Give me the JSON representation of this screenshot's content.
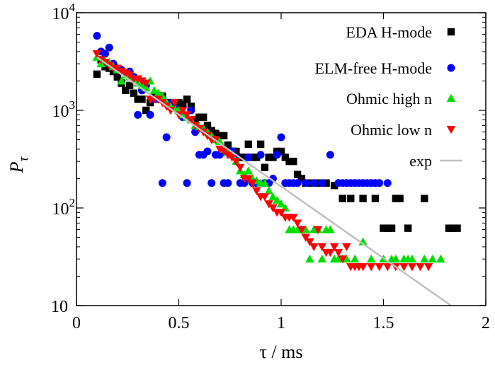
{
  "chart_data": {
    "type": "scatter",
    "xlabel": "τ / ms",
    "ylabel": "P",
    "ylabel_subscript": "τ",
    "xlim": [
      0,
      2
    ],
    "ylim": [
      10,
      10000
    ],
    "y_scale": "log",
    "grid": false,
    "legend_position": "top-right",
    "x_ticks": [
      {
        "value": 0,
        "label": "0"
      },
      {
        "value": 0.5,
        "label": "0.5"
      },
      {
        "value": 1,
        "label": "1"
      },
      {
        "value": 1.5,
        "label": "1.5"
      },
      {
        "value": 2,
        "label": "2"
      }
    ],
    "y_ticks": [
      {
        "value": 10,
        "label": "10",
        "exp": ""
      },
      {
        "value": 100,
        "label": "10",
        "exp": "2"
      },
      {
        "value": 1000,
        "label": "10",
        "exp": "3"
      },
      {
        "value": 10000,
        "label": "10",
        "exp": "4"
      }
    ],
    "series": [
      {
        "name": "EDA H-mode",
        "marker": "square",
        "color": "#000000",
        "points": [
          [
            0.1,
            2350
          ],
          [
            0.12,
            3300
          ],
          [
            0.14,
            2800
          ],
          [
            0.16,
            2700
          ],
          [
            0.18,
            2500
          ],
          [
            0.2,
            2200
          ],
          [
            0.22,
            1900
          ],
          [
            0.24,
            1600
          ],
          [
            0.26,
            1800
          ],
          [
            0.28,
            1500
          ],
          [
            0.3,
            1300
          ],
          [
            0.32,
            1300
          ],
          [
            0.34,
            1000
          ],
          [
            0.36,
            1200
          ],
          [
            0.38,
            1400
          ],
          [
            0.4,
            1400
          ],
          [
            0.42,
            1400
          ],
          [
            0.44,
            1200
          ],
          [
            0.46,
            1100
          ],
          [
            0.5,
            1200
          ],
          [
            0.52,
            1150
          ],
          [
            0.54,
            1300
          ],
          [
            0.56,
            1100
          ],
          [
            0.58,
            800
          ],
          [
            0.6,
            850
          ],
          [
            0.62,
            850
          ],
          [
            0.64,
            700
          ],
          [
            0.66,
            620
          ],
          [
            0.68,
            580
          ],
          [
            0.7,
            550
          ],
          [
            0.72,
            550
          ],
          [
            0.74,
            440
          ],
          [
            0.76,
            380
          ],
          [
            0.78,
            380
          ],
          [
            0.8,
            330
          ],
          [
            0.82,
            330
          ],
          [
            0.84,
            450
          ],
          [
            0.86,
            330
          ],
          [
            0.88,
            330
          ],
          [
            0.9,
            450
          ],
          [
            0.92,
            260
          ],
          [
            0.94,
            330
          ],
          [
            0.96,
            330
          ],
          [
            0.98,
            380
          ],
          [
            1,
            380
          ],
          [
            1.02,
            330
          ],
          [
            1.04,
            300
          ],
          [
            1.06,
            300
          ],
          [
            1.08,
            220
          ],
          [
            1.1,
            200
          ],
          [
            1.12,
            180
          ],
          [
            1.14,
            180
          ],
          [
            1.16,
            180
          ],
          [
            1.18,
            180
          ],
          [
            1.2,
            180
          ],
          [
            1.22,
            180
          ],
          [
            1.26,
            170
          ],
          [
            1.3,
            125
          ],
          [
            1.34,
            125
          ],
          [
            1.4,
            125
          ],
          [
            1.46,
            125
          ],
          [
            1.5,
            62
          ],
          [
            1.52,
            62
          ],
          [
            1.54,
            62
          ],
          [
            1.56,
            125
          ],
          [
            1.58,
            125
          ],
          [
            1.62,
            62
          ],
          [
            1.7,
            125
          ],
          [
            1.82,
            62
          ],
          [
            1.84,
            62
          ],
          [
            1.86,
            62
          ]
        ]
      },
      {
        "name": "ELM-free H-mode",
        "marker": "circle",
        "color": "#0000ff",
        "points": [
          [
            0.1,
            5800
          ],
          [
            0.12,
            4000
          ],
          [
            0.14,
            3800
          ],
          [
            0.16,
            4400
          ],
          [
            0.18,
            3000
          ],
          [
            0.2,
            2700
          ],
          [
            0.22,
            2600
          ],
          [
            0.24,
            2400
          ],
          [
            0.26,
            2500
          ],
          [
            0.28,
            2200
          ],
          [
            0.3,
            900
          ],
          [
            0.32,
            1600
          ],
          [
            0.34,
            1800
          ],
          [
            0.36,
            900
          ],
          [
            0.38,
            1300
          ],
          [
            0.4,
            1300
          ],
          [
            0.42,
            180
          ],
          [
            0.44,
            530
          ],
          [
            0.46,
            1200
          ],
          [
            0.48,
            1050
          ],
          [
            0.5,
            1000
          ],
          [
            0.52,
            850
          ],
          [
            0.54,
            180
          ],
          [
            0.56,
            1000
          ],
          [
            0.58,
            600
          ],
          [
            0.6,
            350
          ],
          [
            0.62,
            350
          ],
          [
            0.64,
            380
          ],
          [
            0.66,
            180
          ],
          [
            0.68,
            350
          ],
          [
            0.7,
            350
          ],
          [
            0.72,
            180
          ],
          [
            0.74,
            180
          ],
          [
            0.76,
            380
          ],
          [
            0.78,
            330
          ],
          [
            0.8,
            180
          ],
          [
            0.82,
            180
          ],
          [
            0.84,
            330
          ],
          [
            0.86,
            180
          ],
          [
            0.88,
            180
          ],
          [
            0.9,
            350
          ],
          [
            0.92,
            180
          ],
          [
            0.94,
            180
          ],
          [
            0.96,
            200
          ],
          [
            0.98,
            350
          ],
          [
            1,
            530
          ],
          [
            1.02,
            180
          ],
          [
            1.04,
            180
          ],
          [
            1.06,
            180
          ],
          [
            1.08,
            180
          ],
          [
            1.12,
            180
          ],
          [
            1.16,
            180
          ],
          [
            1.2,
            180
          ],
          [
            1.24,
            350
          ],
          [
            1.28,
            180
          ],
          [
            1.3,
            180
          ],
          [
            1.32,
            180
          ],
          [
            1.34,
            180
          ],
          [
            1.36,
            180
          ],
          [
            1.38,
            180
          ],
          [
            1.4,
            180
          ],
          [
            1.42,
            180
          ],
          [
            1.44,
            180
          ],
          [
            1.46,
            180
          ],
          [
            1.48,
            180
          ],
          [
            1.52,
            180
          ]
        ]
      },
      {
        "name": "Ohmic high n",
        "marker": "triangle-up",
        "color": "#00dd00",
        "points": [
          [
            0.1,
            3500
          ],
          [
            0.12,
            3000
          ],
          [
            0.14,
            3200
          ],
          [
            0.16,
            3100
          ],
          [
            0.18,
            2800
          ],
          [
            0.2,
            2600
          ],
          [
            0.22,
            2000
          ],
          [
            0.24,
            2300
          ],
          [
            0.26,
            2200
          ],
          [
            0.28,
            2100
          ],
          [
            0.3,
            1900
          ],
          [
            0.32,
            1800
          ],
          [
            0.34,
            1700
          ],
          [
            0.36,
            2000
          ],
          [
            0.38,
            1600
          ],
          [
            0.4,
            1500
          ],
          [
            0.42,
            1400
          ],
          [
            0.44,
            1200
          ],
          [
            0.46,
            1100
          ],
          [
            0.48,
            1050
          ],
          [
            0.5,
            1000
          ],
          [
            0.52,
            900
          ],
          [
            0.54,
            850
          ],
          [
            0.56,
            800
          ],
          [
            0.58,
            700
          ],
          [
            0.6,
            680
          ],
          [
            0.62,
            650
          ],
          [
            0.64,
            600
          ],
          [
            0.66,
            550
          ],
          [
            0.68,
            500
          ],
          [
            0.7,
            480
          ],
          [
            0.72,
            400
          ],
          [
            0.74,
            370
          ],
          [
            0.76,
            350
          ],
          [
            0.78,
            300
          ],
          [
            0.8,
            240
          ],
          [
            0.82,
            220
          ],
          [
            0.84,
            240
          ],
          [
            0.86,
            200
          ],
          [
            0.88,
            190
          ],
          [
            0.9,
            180
          ],
          [
            0.92,
            180
          ],
          [
            0.94,
            150
          ],
          [
            0.96,
            130
          ],
          [
            0.98,
            120
          ],
          [
            1.0,
            110
          ],
          [
            1.02,
            100
          ],
          [
            1.04,
            60
          ],
          [
            1.06,
            60
          ],
          [
            1.08,
            60
          ],
          [
            1.1,
            60
          ],
          [
            1.12,
            60
          ],
          [
            1.14,
            30
          ],
          [
            1.16,
            60
          ],
          [
            1.18,
            60
          ],
          [
            1.2,
            30
          ],
          [
            1.22,
            60
          ],
          [
            1.24,
            60
          ],
          [
            1.26,
            30
          ],
          [
            1.28,
            30
          ],
          [
            1.3,
            30
          ],
          [
            1.32,
            30
          ],
          [
            1.36,
            30
          ],
          [
            1.4,
            45
          ],
          [
            1.44,
            30
          ],
          [
            1.5,
            30
          ],
          [
            1.54,
            30
          ],
          [
            1.56,
            30
          ],
          [
            1.6,
            30
          ],
          [
            1.62,
            30
          ],
          [
            1.64,
            30
          ],
          [
            1.7,
            30
          ],
          [
            1.74,
            30
          ],
          [
            1.78,
            30
          ]
        ]
      },
      {
        "name": "Ohmic low n",
        "marker": "triangle-down",
        "color": "#ff0000",
        "points": [
          [
            0.1,
            3800
          ],
          [
            0.12,
            3300
          ],
          [
            0.14,
            3100
          ],
          [
            0.16,
            2900
          ],
          [
            0.18,
            2700
          ],
          [
            0.2,
            2700
          ],
          [
            0.22,
            2500
          ],
          [
            0.24,
            2400
          ],
          [
            0.26,
            2300
          ],
          [
            0.28,
            2100
          ],
          [
            0.3,
            2100
          ],
          [
            0.32,
            2000
          ],
          [
            0.34,
            1900
          ],
          [
            0.36,
            1300
          ],
          [
            0.38,
            1300
          ],
          [
            0.4,
            1300
          ],
          [
            0.42,
            1200
          ],
          [
            0.44,
            1100
          ],
          [
            0.46,
            1000
          ],
          [
            0.48,
            1200
          ],
          [
            0.5,
            900
          ],
          [
            0.52,
            1000
          ],
          [
            0.54,
            900
          ],
          [
            0.56,
            800
          ],
          [
            0.58,
            700
          ],
          [
            0.6,
            650
          ],
          [
            0.62,
            600
          ],
          [
            0.64,
            550
          ],
          [
            0.66,
            500
          ],
          [
            0.68,
            500
          ],
          [
            0.7,
            400
          ],
          [
            0.72,
            380
          ],
          [
            0.74,
            350
          ],
          [
            0.76,
            330
          ],
          [
            0.78,
            300
          ],
          [
            0.8,
            260
          ],
          [
            0.82,
            200
          ],
          [
            0.84,
            200
          ],
          [
            0.86,
            180
          ],
          [
            0.88,
            150
          ],
          [
            0.9,
            130
          ],
          [
            0.92,
            130
          ],
          [
            0.94,
            110
          ],
          [
            0.96,
            100
          ],
          [
            0.98,
            90
          ],
          [
            1.0,
            90
          ],
          [
            1.02,
            80
          ],
          [
            1.04,
            80
          ],
          [
            1.06,
            80
          ],
          [
            1.08,
            70
          ],
          [
            1.1,
            60
          ],
          [
            1.12,
            50
          ],
          [
            1.14,
            45
          ],
          [
            1.16,
            40
          ],
          [
            1.18,
            60
          ],
          [
            1.2,
            40
          ],
          [
            1.22,
            35
          ],
          [
            1.24,
            35
          ],
          [
            1.26,
            40
          ],
          [
            1.28,
            35
          ],
          [
            1.3,
            30
          ],
          [
            1.32,
            40
          ],
          [
            1.34,
            25
          ],
          [
            1.36,
            25
          ],
          [
            1.38,
            25
          ],
          [
            1.4,
            25
          ],
          [
            1.44,
            25
          ],
          [
            1.48,
            25
          ],
          [
            1.52,
            25
          ],
          [
            1.56,
            25
          ],
          [
            1.6,
            25
          ],
          [
            1.64,
            25
          ],
          [
            1.68,
            25
          ],
          [
            1.72,
            25
          ]
        ]
      },
      {
        "name": "exp",
        "type": "line",
        "color": "#c0c0c0",
        "x": [
          0.1,
          1.83
        ],
        "y": [
          3500,
          10
        ]
      }
    ]
  }
}
